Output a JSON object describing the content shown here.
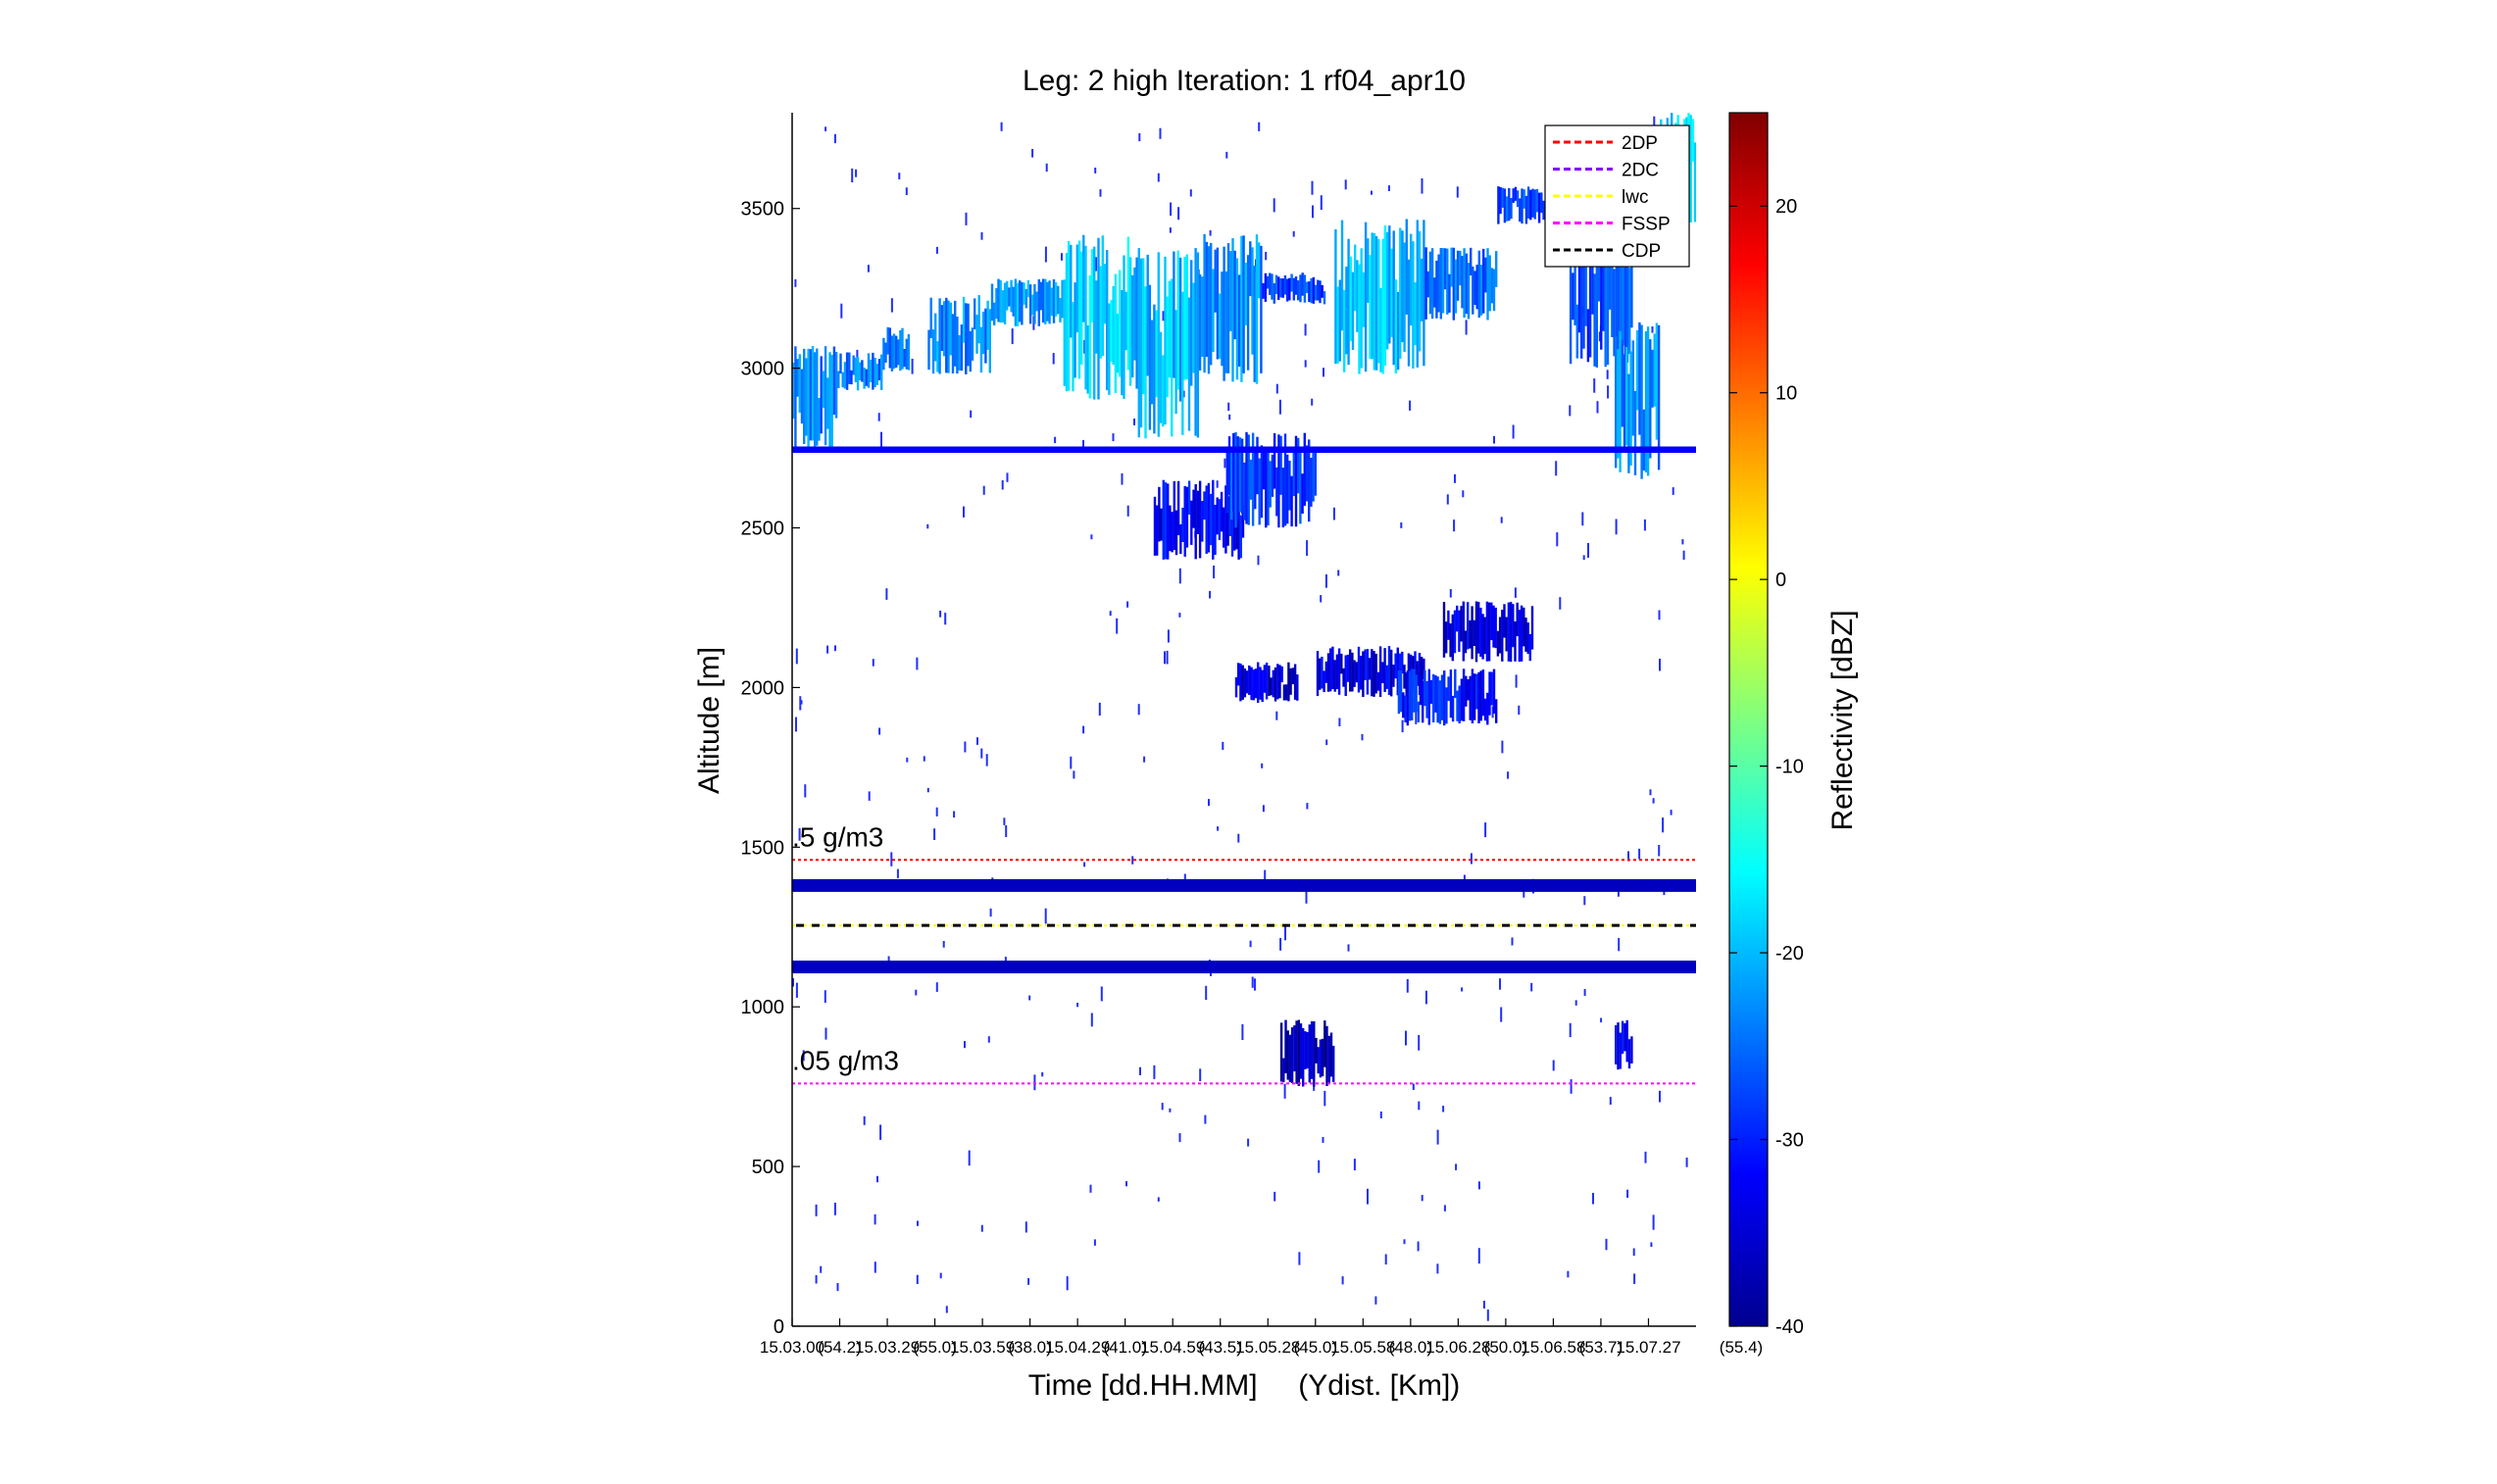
{
  "chart_data": {
    "type": "heatmap",
    "title": "Leg: 2 high Iteration: 1  rf04_apr10",
    "xlabel": "Time [dd.HH.MM]     (Ydist. [Km])",
    "ylabel": "Altitude [m]",
    "ylim": [
      0,
      3800
    ],
    "yticks": [
      0,
      500,
      1000,
      1500,
      2000,
      2500,
      3000,
      3500
    ],
    "x_tick_labels": [
      "15.03.00",
      "(54.2)",
      "15.03.29",
      "(55.0)",
      "15.03.59",
      "(38.0)",
      "15.04.29",
      "(41.0)",
      "15.04.59",
      "(43.5)",
      "15.05.28",
      "(45.0)",
      "15.05.58",
      "(48.0)",
      "15.06.28",
      "(50.0)",
      "15.06.58",
      "(53.7)",
      "15.07.27",
      "(55.4)"
    ],
    "colorbar": {
      "label": "Reflectivity [dBZ]",
      "range": [
        -40,
        25
      ],
      "ticks": [
        -40,
        -30,
        -20,
        -10,
        0,
        10,
        20
      ],
      "colormap": "jet"
    },
    "legend": {
      "placement": "top-right",
      "entries": [
        {
          "label": "2DP",
          "color": "#ff0000"
        },
        {
          "label": "2DC",
          "color": "#8000ff"
        },
        {
          "label": "lwc",
          "color": "#ffff00"
        },
        {
          "label": "FSSP",
          "color": "#ff00ff"
        },
        {
          "label": "CDP",
          "color": "#000000"
        }
      ]
    },
    "reference_lines": [
      {
        "label": ".5 g/m3",
        "altitude": 1460,
        "color": "#ff0000"
      },
      {
        "label": ".05 g/m3",
        "altitude": 760,
        "color": "#ff00ff"
      },
      {
        "label": "",
        "altitude": 1255,
        "color": "#ffff00"
      }
    ],
    "echo_regions": [
      {
        "x": [
          0.0,
          0.05
        ],
        "y": [
          2750,
          3070
        ],
        "dbz": -23
      },
      {
        "x": [
          0.05,
          0.1
        ],
        "y": [
          2930,
          3050
        ],
        "dbz": -23
      },
      {
        "x": [
          0.1,
          0.13
        ],
        "y": [
          2990,
          3130
        ],
        "dbz": -24
      },
      {
        "x": [
          0.15,
          0.22
        ],
        "y": [
          2980,
          3230
        ],
        "dbz": -22
      },
      {
        "x": [
          0.22,
          0.3
        ],
        "y": [
          3130,
          3280
        ],
        "dbz": -21
      },
      {
        "x": [
          0.3,
          0.38
        ],
        "y": [
          2900,
          3420
        ],
        "dbz": -18
      },
      {
        "x": [
          0.38,
          0.45
        ],
        "y": [
          2780,
          3380
        ],
        "dbz": -19
      },
      {
        "x": [
          0.45,
          0.52
        ],
        "y": [
          2950,
          3420
        ],
        "dbz": -22
      },
      {
        "x": [
          0.52,
          0.59
        ],
        "y": [
          3200,
          3300
        ],
        "dbz": -27
      },
      {
        "x": [
          0.6,
          0.7
        ],
        "y": [
          2980,
          3470
        ],
        "dbz": -19
      },
      {
        "x": [
          0.7,
          0.78
        ],
        "y": [
          3150,
          3380
        ],
        "dbz": -24
      },
      {
        "x": [
          0.78,
          0.88
        ],
        "y": [
          3450,
          3570
        ],
        "dbz": -27
      },
      {
        "x": [
          0.86,
          0.93
        ],
        "y": [
          3000,
          3400
        ],
        "dbz": -26
      },
      {
        "x": [
          0.91,
          0.96
        ],
        "y": [
          2650,
          3150
        ],
        "dbz": -22
      },
      {
        "x": [
          0.96,
          1.0
        ],
        "y": [
          3450,
          3800
        ],
        "dbz": -17
      },
      {
        "x": [
          0.4,
          0.5
        ],
        "y": [
          2400,
          2650
        ],
        "dbz": -31
      },
      {
        "x": [
          0.48,
          0.58
        ],
        "y": [
          2500,
          2800
        ],
        "dbz": -27
      },
      {
        "x": [
          0.49,
          0.56
        ],
        "y": [
          1950,
          2080
        ],
        "dbz": -34
      },
      {
        "x": [
          0.58,
          0.7
        ],
        "y": [
          1970,
          2130
        ],
        "dbz": -33
      },
      {
        "x": [
          0.67,
          0.78
        ],
        "y": [
          1880,
          2060
        ],
        "dbz": -30
      },
      {
        "x": [
          0.72,
          0.82
        ],
        "y": [
          2080,
          2270
        ],
        "dbz": -33
      },
      {
        "x": [
          0.54,
          0.6
        ],
        "y": [
          750,
          960
        ],
        "dbz": -36
      },
      {
        "x": [
          0.91,
          0.93
        ],
        "y": [
          800,
          960
        ],
        "dbz": -33
      }
    ],
    "horizontal_bands": [
      {
        "altitude": 2745,
        "thickness": 20,
        "dbz": -32
      },
      {
        "altitude": 1380,
        "thickness": 40,
        "dbz": -36
      },
      {
        "altitude": 1125,
        "thickness": 40,
        "dbz": -36
      }
    ]
  }
}
